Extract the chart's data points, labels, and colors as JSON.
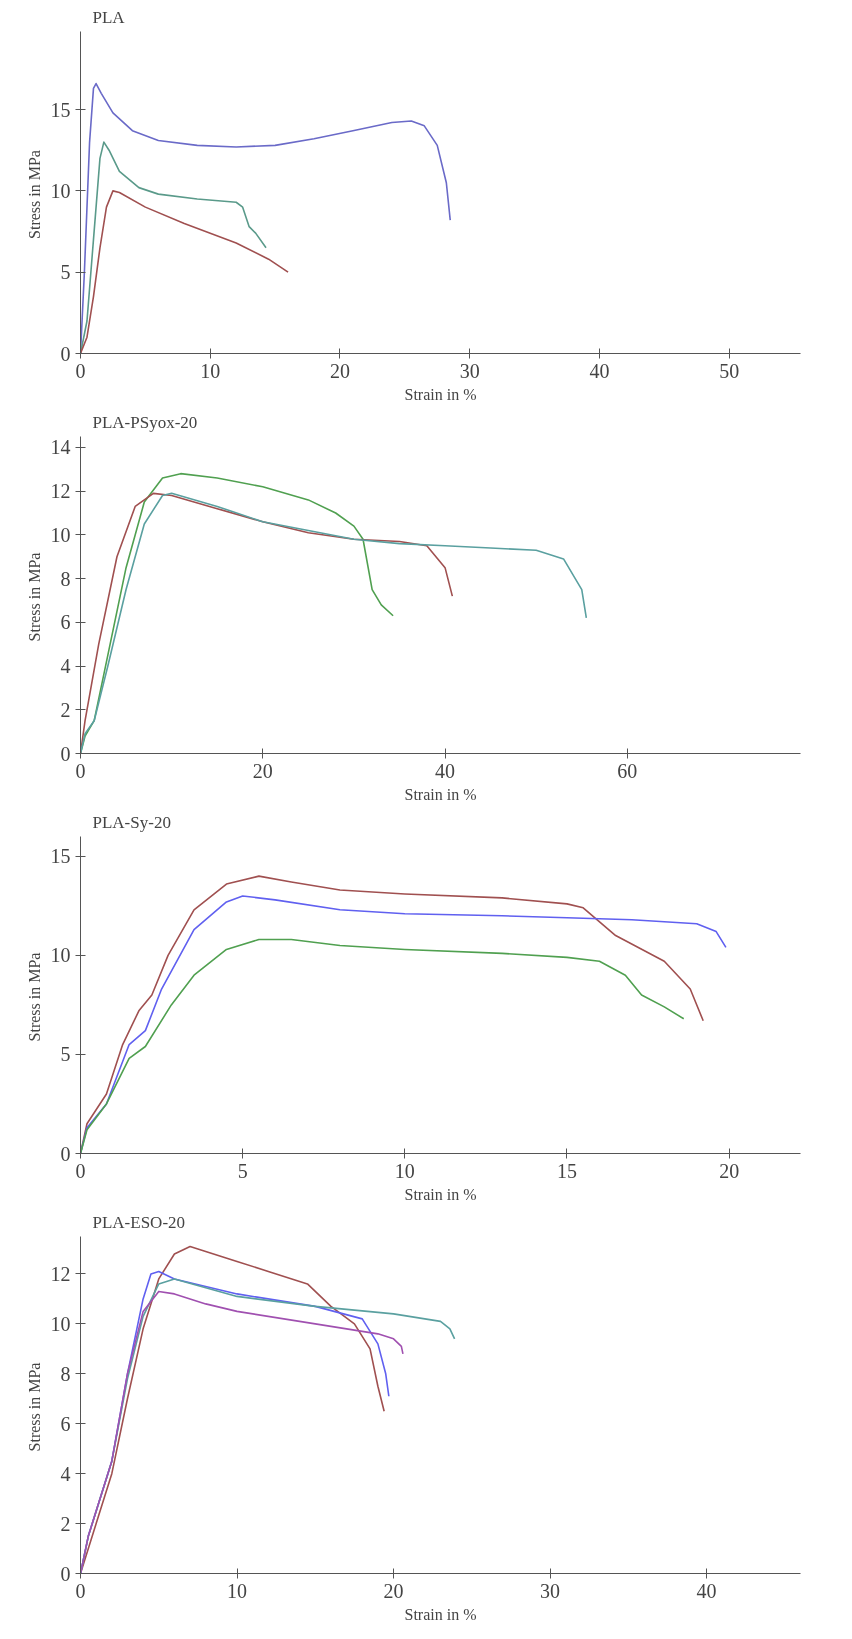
{
  "chart_data": [
    {
      "type": "line",
      "title": "PLA",
      "xlabel": "Strain in %",
      "ylabel": "Stress in  MPa",
      "xlim": [
        0,
        55.5
      ],
      "ylim": [
        0,
        19.8
      ],
      "xticks": [
        0,
        10,
        20,
        30,
        40,
        50
      ],
      "yticks": [
        0,
        5,
        10,
        15
      ],
      "marker": "none",
      "line_style": "solid",
      "series": [
        {
          "color": "#6a6ac8",
          "x": [
            0,
            0.3,
            0.7,
            1.0,
            1.2,
            1.6,
            2.5,
            4,
            6,
            9,
            12,
            15,
            18,
            21,
            24,
            25.5,
            26.5,
            27.5,
            28.2,
            28.5
          ],
          "values": [
            0,
            5,
            13,
            16.3,
            16.6,
            16,
            14.8,
            13.7,
            13.1,
            12.8,
            12.7,
            12.8,
            13.2,
            13.7,
            14.2,
            14.3,
            14,
            12.8,
            10.5,
            8.2
          ]
        },
        {
          "color": "#5a9a8a",
          "x": [
            0,
            0.5,
            1,
            1.5,
            1.8,
            2.2,
            3,
            4.5,
            6,
            9,
            12,
            12.5,
            13,
            13.5,
            14.3
          ],
          "values": [
            0,
            2,
            7,
            12,
            13,
            12.5,
            11.2,
            10.2,
            9.8,
            9.5,
            9.3,
            9,
            7.8,
            7.4,
            6.5
          ]
        },
        {
          "color": "#a05050",
          "x": [
            0,
            0.5,
            1,
            1.5,
            2,
            2.5,
            3,
            5,
            8,
            12,
            14.5,
            16
          ],
          "values": [
            0,
            1,
            3.5,
            6.5,
            9,
            10,
            9.9,
            9,
            8,
            6.8,
            5.8,
            5
          ]
        }
      ]
    },
    {
      "type": "line",
      "title": "PLA-PSyox-20",
      "xlabel": "Strain in %",
      "ylabel": "Stress in  MPa",
      "xlim": [
        0,
        79
      ],
      "ylim": [
        0,
        14.5
      ],
      "xticks": [
        0,
        20,
        40,
        60
      ],
      "yticks": [
        0,
        2,
        4,
        6,
        8,
        10,
        12,
        14
      ],
      "marker": "none",
      "line_style": "solid",
      "series": [
        {
          "color": "#50a050",
          "x": [
            0,
            0.5,
            1.5,
            3,
            5,
            7,
            9,
            11,
            15,
            20,
            25,
            28,
            30,
            31,
            32,
            33,
            34.3
          ],
          "values": [
            0,
            0.8,
            1.5,
            4.5,
            8.5,
            11.5,
            12.6,
            12.8,
            12.6,
            12.2,
            11.6,
            11,
            10.4,
            9.8,
            7.5,
            6.8,
            6.3
          ]
        },
        {
          "color": "#a05050",
          "x": [
            0,
            0.5,
            2,
            4,
            6,
            8,
            10,
            15,
            20,
            25,
            30,
            35,
            38,
            40,
            40.8
          ],
          "values": [
            0,
            1.5,
            5,
            9,
            11.3,
            11.9,
            11.8,
            11.2,
            10.6,
            10.1,
            9.8,
            9.7,
            9.5,
            8.5,
            7.2
          ]
        },
        {
          "color": "#5aa0a0",
          "x": [
            0,
            0.5,
            1.5,
            3,
            5,
            7,
            9,
            10,
            15,
            20,
            25,
            30,
            35,
            40,
            45,
            50,
            53,
            55,
            55.5
          ],
          "values": [
            0,
            0.9,
            1.5,
            4,
            7.5,
            10.5,
            11.8,
            11.9,
            11.3,
            10.6,
            10.2,
            9.8,
            9.6,
            9.5,
            9.4,
            9.3,
            8.9,
            7.5,
            6.2
          ]
        }
      ]
    },
    {
      "type": "line",
      "title": "PLA-Sy-20",
      "xlabel": "Strain in %",
      "ylabel": "Stress in  MPa",
      "xlim": [
        0,
        22.2
      ],
      "ylim": [
        0,
        16
      ],
      "xticks": [
        0,
        5,
        10,
        15,
        20
      ],
      "yticks": [
        0,
        5,
        10,
        15
      ],
      "marker": "none",
      "line_style": "solid",
      "series": [
        {
          "color": "#a05050",
          "x": [
            0,
            0.2,
            0.8,
            1.3,
            1.8,
            2.2,
            2.7,
            3.5,
            4.5,
            5.5,
            6.5,
            8,
            10,
            13,
            15,
            15.5,
            16.5,
            18,
            18.8,
            19.2
          ],
          "values": [
            0,
            1.5,
            3,
            5.5,
            7.2,
            8,
            10,
            12.3,
            13.6,
            14,
            13.7,
            13.3,
            13.1,
            12.9,
            12.6,
            12.4,
            11,
            9.7,
            8.3,
            6.7
          ]
        },
        {
          "color": "#6060f0",
          "x": [
            0,
            0.2,
            0.8,
            1.5,
            2,
            2.5,
            3.5,
            4.5,
            5,
            6,
            8,
            10,
            13,
            15,
            17,
            19,
            19.6,
            19.9
          ],
          "values": [
            0,
            1.3,
            2.5,
            5.5,
            6.2,
            8.3,
            11.3,
            12.7,
            13,
            12.8,
            12.3,
            12.1,
            12,
            11.9,
            11.8,
            11.6,
            11.2,
            10.4
          ]
        },
        {
          "color": "#50a050",
          "x": [
            0,
            0.2,
            0.8,
            1.5,
            2,
            2.8,
            3.5,
            4.5,
            5.5,
            6.5,
            8,
            10,
            13,
            15,
            16,
            16.8,
            17.3,
            18,
            18.6
          ],
          "values": [
            0,
            1.2,
            2.5,
            4.8,
            5.4,
            7.5,
            9,
            10.3,
            10.8,
            10.8,
            10.5,
            10.3,
            10.1,
            9.9,
            9.7,
            9,
            8,
            7.4,
            6.8
          ]
        }
      ]
    },
    {
      "type": "line",
      "title": "PLA-ESO-20",
      "xlabel": "Strain in %",
      "ylabel": "Stress in  MPa",
      "xlim": [
        0,
        46
      ],
      "ylim": [
        0,
        13.5
      ],
      "xticks": [
        0,
        10,
        20,
        30,
        40
      ],
      "yticks": [
        0,
        2,
        4,
        6,
        8,
        10,
        12
      ],
      "marker": "none",
      "line_style": "solid",
      "series": [
        {
          "color": "#a05050",
          "x": [
            0,
            1,
            2,
            3,
            4,
            5,
            6,
            7,
            8,
            10,
            12,
            14.5,
            16,
            17.5,
            18.5,
            19,
            19.4
          ],
          "values": [
            0,
            2,
            4,
            7,
            9.8,
            11.8,
            12.8,
            13.1,
            12.9,
            12.5,
            12.1,
            11.6,
            10.7,
            10,
            9,
            7.5,
            6.5
          ]
        },
        {
          "color": "#6060f0",
          "x": [
            0,
            0.5,
            2,
            3,
            4,
            4.5,
            5,
            6,
            10,
            15,
            18,
            19,
            19.5,
            19.7
          ],
          "values": [
            0,
            1.5,
            4.5,
            8,
            11,
            12,
            12.1,
            11.8,
            11.2,
            10.7,
            10.2,
            9.2,
            8,
            7.1
          ]
        },
        {
          "color": "#5aa0a0",
          "x": [
            0,
            0.5,
            2,
            3,
            4,
            5,
            6,
            10,
            15,
            20,
            23,
            23.6,
            23.9
          ],
          "values": [
            0,
            1.5,
            4.5,
            7.8,
            10.3,
            11.6,
            11.8,
            11.1,
            10.7,
            10.4,
            10.1,
            9.8,
            9.4
          ]
        },
        {
          "color": "#a050b0",
          "x": [
            0,
            0.5,
            2,
            3,
            4,
            5,
            6,
            8,
            10,
            15,
            19,
            20,
            20.5,
            20.6
          ],
          "values": [
            0,
            1.5,
            4.5,
            8,
            10.5,
            11.3,
            11.2,
            10.8,
            10.5,
            10,
            9.6,
            9.4,
            9.1,
            8.8
          ]
        }
      ]
    }
  ]
}
